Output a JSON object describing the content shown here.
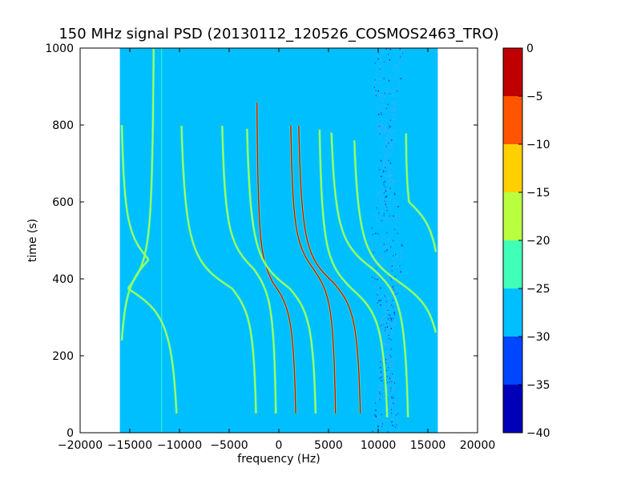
{
  "chart_data": {
    "type": "heatmap",
    "title": "150 MHz signal PSD (20130112_120526_COSMOS2463_TRO)",
    "xlabel": "frequency (Hz)",
    "ylabel": "time (s)",
    "xlim": [
      -20000,
      20000
    ],
    "ylim": [
      0,
      1000
    ],
    "xticks": [
      -20000,
      -15000,
      -10000,
      -5000,
      0,
      5000,
      10000,
      15000,
      20000
    ],
    "xtick_labels": [
      "−20000",
      "−15000",
      "−10000",
      "−5000",
      "0",
      "5000",
      "10000",
      "15000",
      "20000"
    ],
    "yticks": [
      0,
      200,
      400,
      600,
      800,
      1000
    ],
    "ytick_labels": [
      "0",
      "200",
      "400",
      "600",
      "800",
      "1000"
    ],
    "data_extent": {
      "freq": [
        -16000,
        16000
      ],
      "time": [
        0,
        1000
      ]
    },
    "background_level": [
      -30,
      -25
    ],
    "colorbar": {
      "levels": [
        -40,
        -35,
        -30,
        -25,
        -20,
        -15,
        -10,
        -5,
        0
      ],
      "tick_labels": [
        "−40",
        "−35",
        "−30",
        "−25",
        "−20",
        "−15",
        "−10",
        "−5",
        "0"
      ],
      "colors": [
        "#0000b8",
        "#0046ff",
        "#00bfff",
        "#40ffb8",
        "#b8ff40",
        "#ffd000",
        "#ff5500",
        "#c00000"
      ]
    },
    "series": [
      {
        "center_freq": -15200,
        "center_time": 375,
        "top_time": 1000,
        "top_freq": -12600,
        "bottom_time": 50,
        "bottom_freq": -10300,
        "level": "green"
      },
      {
        "center_freq": -13100,
        "center_time": 450,
        "top_time": 800,
        "top_freq": -15800,
        "bottom_time": 240,
        "bottom_freq": -15800,
        "level": "green"
      },
      {
        "center_freq": -4700,
        "center_time": 375,
        "top_time": 800,
        "top_freq": -9800,
        "bottom_time": 50,
        "bottom_freq": -2300,
        "level": "green"
      },
      {
        "center_freq": -2500,
        "center_time": 425,
        "top_time": 800,
        "top_freq": -5700,
        "bottom_time": 50,
        "bottom_freq": -300,
        "level": "yellow"
      },
      {
        "center_freq": -600,
        "center_time": 390,
        "top_time": 860,
        "top_freq": -2200,
        "bottom_time": 50,
        "bottom_freq": 1700,
        "level": "red"
      },
      {
        "center_freq": 1100,
        "center_time": 375,
        "top_time": 790,
        "top_freq": -3200,
        "bottom_time": 50,
        "bottom_freq": 3700,
        "level": "green"
      },
      {
        "center_freq": 3500,
        "center_time": 425,
        "top_time": 800,
        "top_freq": 1200,
        "bottom_time": 50,
        "bottom_freq": 5700,
        "level": "red"
      },
      {
        "center_freq": 5500,
        "center_time": 390,
        "top_time": 800,
        "top_freq": 2000,
        "bottom_time": 50,
        "bottom_freq": 8200,
        "level": "red"
      },
      {
        "center_freq": 7300,
        "center_time": 375,
        "top_time": 790,
        "top_freq": 4100,
        "bottom_time": 40,
        "bottom_freq": 10900,
        "level": "yellow"
      },
      {
        "center_freq": 9500,
        "center_time": 425,
        "top_time": 780,
        "top_freq": 5300,
        "bottom_time": 40,
        "bottom_freq": 13000,
        "level": "green"
      },
      {
        "center_freq": 12200,
        "center_time": 390,
        "top_time": 760,
        "top_freq": 7600,
        "bottom_time": 260,
        "bottom_freq": 15800,
        "level": "green"
      },
      {
        "center_freq": 13100,
        "center_time": 600,
        "top_time": 780,
        "top_freq": 12800,
        "bottom_time": 470,
        "bottom_freq": 15800,
        "level": "green"
      }
    ],
    "vertical_lines": [
      {
        "freq": -11800,
        "from_time": 0,
        "to_time": 1000,
        "level": "green"
      },
      {
        "freq": 10800,
        "from_time": 0,
        "to_time": 1000,
        "level": "noise"
      }
    ]
  }
}
